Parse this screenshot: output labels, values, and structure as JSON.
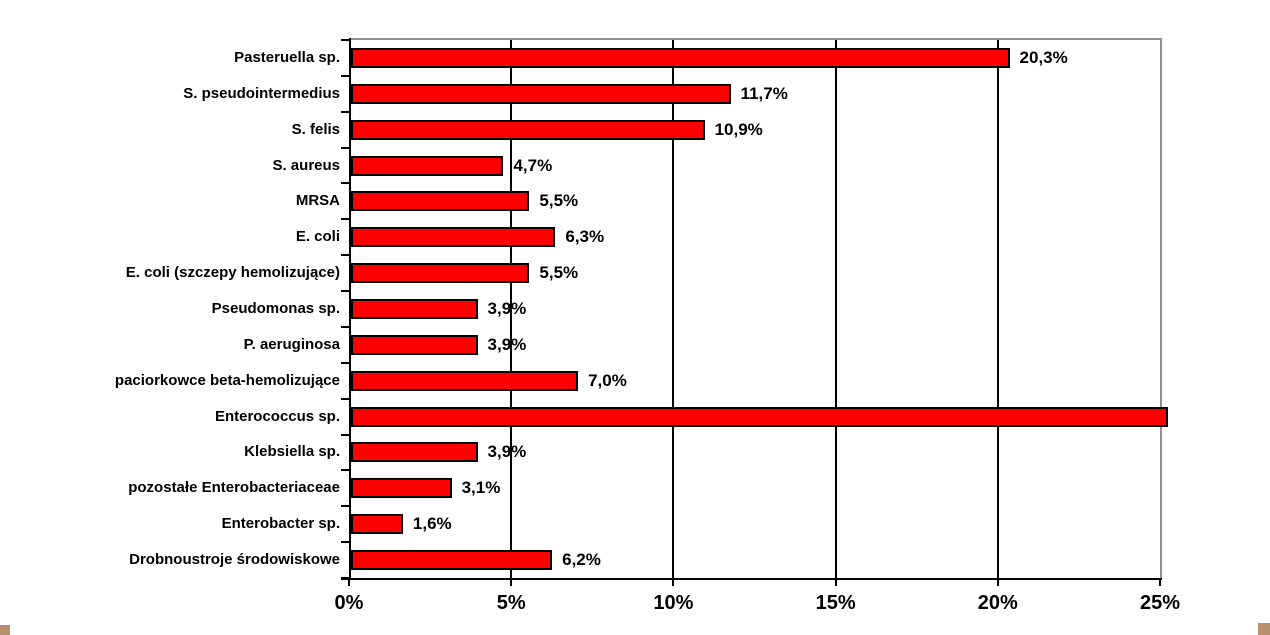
{
  "chart_data": {
    "type": "bar",
    "orientation": "horizontal",
    "title": "",
    "xlabel": "",
    "ylabel": "",
    "xlim": [
      0,
      25
    ],
    "x_tick_labels": [
      "0%",
      "5%",
      "10%",
      "15%",
      "20%",
      "25%"
    ],
    "x_tick_values": [
      0,
      5,
      10,
      15,
      20,
      25
    ],
    "grid": "vertical",
    "bar_color": "#ff0000",
    "bar_border_color": "#000000",
    "plot_border_color": "#909090",
    "categories": [
      "Pasteruella sp.",
      "S. pseudointermedius",
      "S. felis",
      "S. aureus",
      "MRSA",
      "E. coli",
      "E. coli (szczepy hemolizujące)",
      "Pseudomonas sp.",
      "P. aeruginosa",
      "paciorkowce beta-hemolizujące",
      "Enterococcus sp.",
      "Klebsiella sp.",
      "pozostałe Enterobacteriaceae",
      "Enterobacter sp.",
      "Drobnoustroje środowiskowe"
    ],
    "values": [
      20.3,
      11.7,
      10.9,
      4.7,
      5.5,
      6.3,
      5.5,
      3.9,
      3.9,
      7.0,
      25.2,
      3.9,
      3.1,
      1.6,
      6.2
    ],
    "data_labels": [
      "20,3%",
      "11,7%",
      "10,9%",
      "4,7%",
      "5,5%",
      "6,3%",
      "5,5%",
      "3,9%",
      "3,9%",
      "7,0%",
      "",
      "3,9%",
      "3,1%",
      "1,6%",
      "6,2%"
    ]
  },
  "decor": {
    "corner_accent_color": "#b8916c"
  }
}
